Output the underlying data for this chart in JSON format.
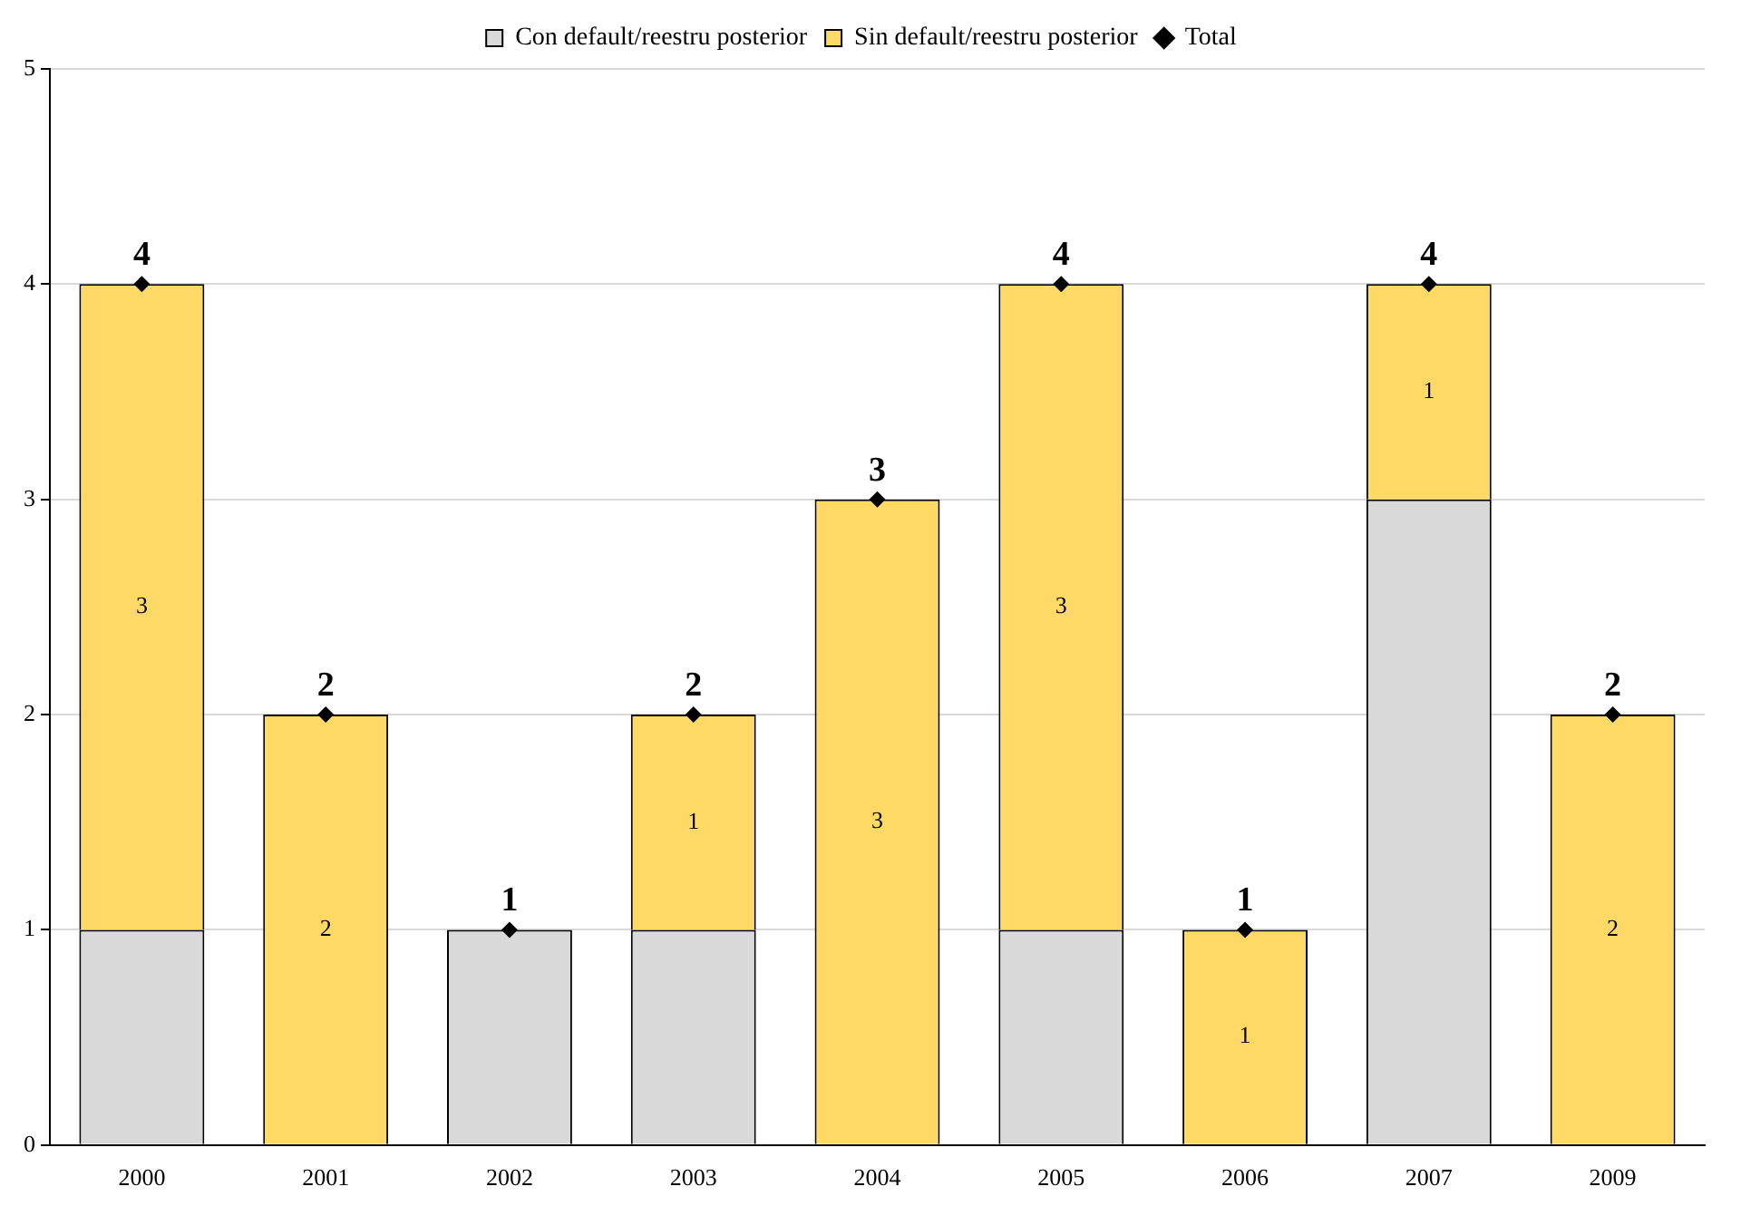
{
  "chart_data": {
    "type": "bar",
    "stacked": true,
    "categories": [
      "2000",
      "2001",
      "2002",
      "2003",
      "2004",
      "2005",
      "2006",
      "2007",
      "2009"
    ],
    "series": [
      {
        "name": "Con default/reestru posterior",
        "color": "#d9d9d9",
        "values": [
          1,
          0,
          1,
          1,
          0,
          1,
          0,
          3,
          0
        ]
      },
      {
        "name": "Sin default/reestru posterior",
        "color": "#ffd966",
        "values": [
          3,
          2,
          0,
          1,
          3,
          3,
          1,
          1,
          2
        ],
        "value_labels": [
          "3",
          "2",
          null,
          "1",
          "3",
          "3",
          "1",
          "1",
          "2"
        ]
      },
      {
        "name": "Total",
        "type": "scatter",
        "color": "#000000",
        "marker": "diamond",
        "values": [
          4,
          2,
          1,
          2,
          3,
          4,
          1,
          4,
          2
        ]
      }
    ],
    "totals": [
      "4",
      "2",
      "1",
      "2",
      "3",
      "4",
      "1",
      "4",
      "2"
    ],
    "ylim": [
      0,
      5
    ],
    "yticks": [
      0,
      1,
      2,
      3,
      4,
      5
    ],
    "grid": "y",
    "legend": "top"
  }
}
